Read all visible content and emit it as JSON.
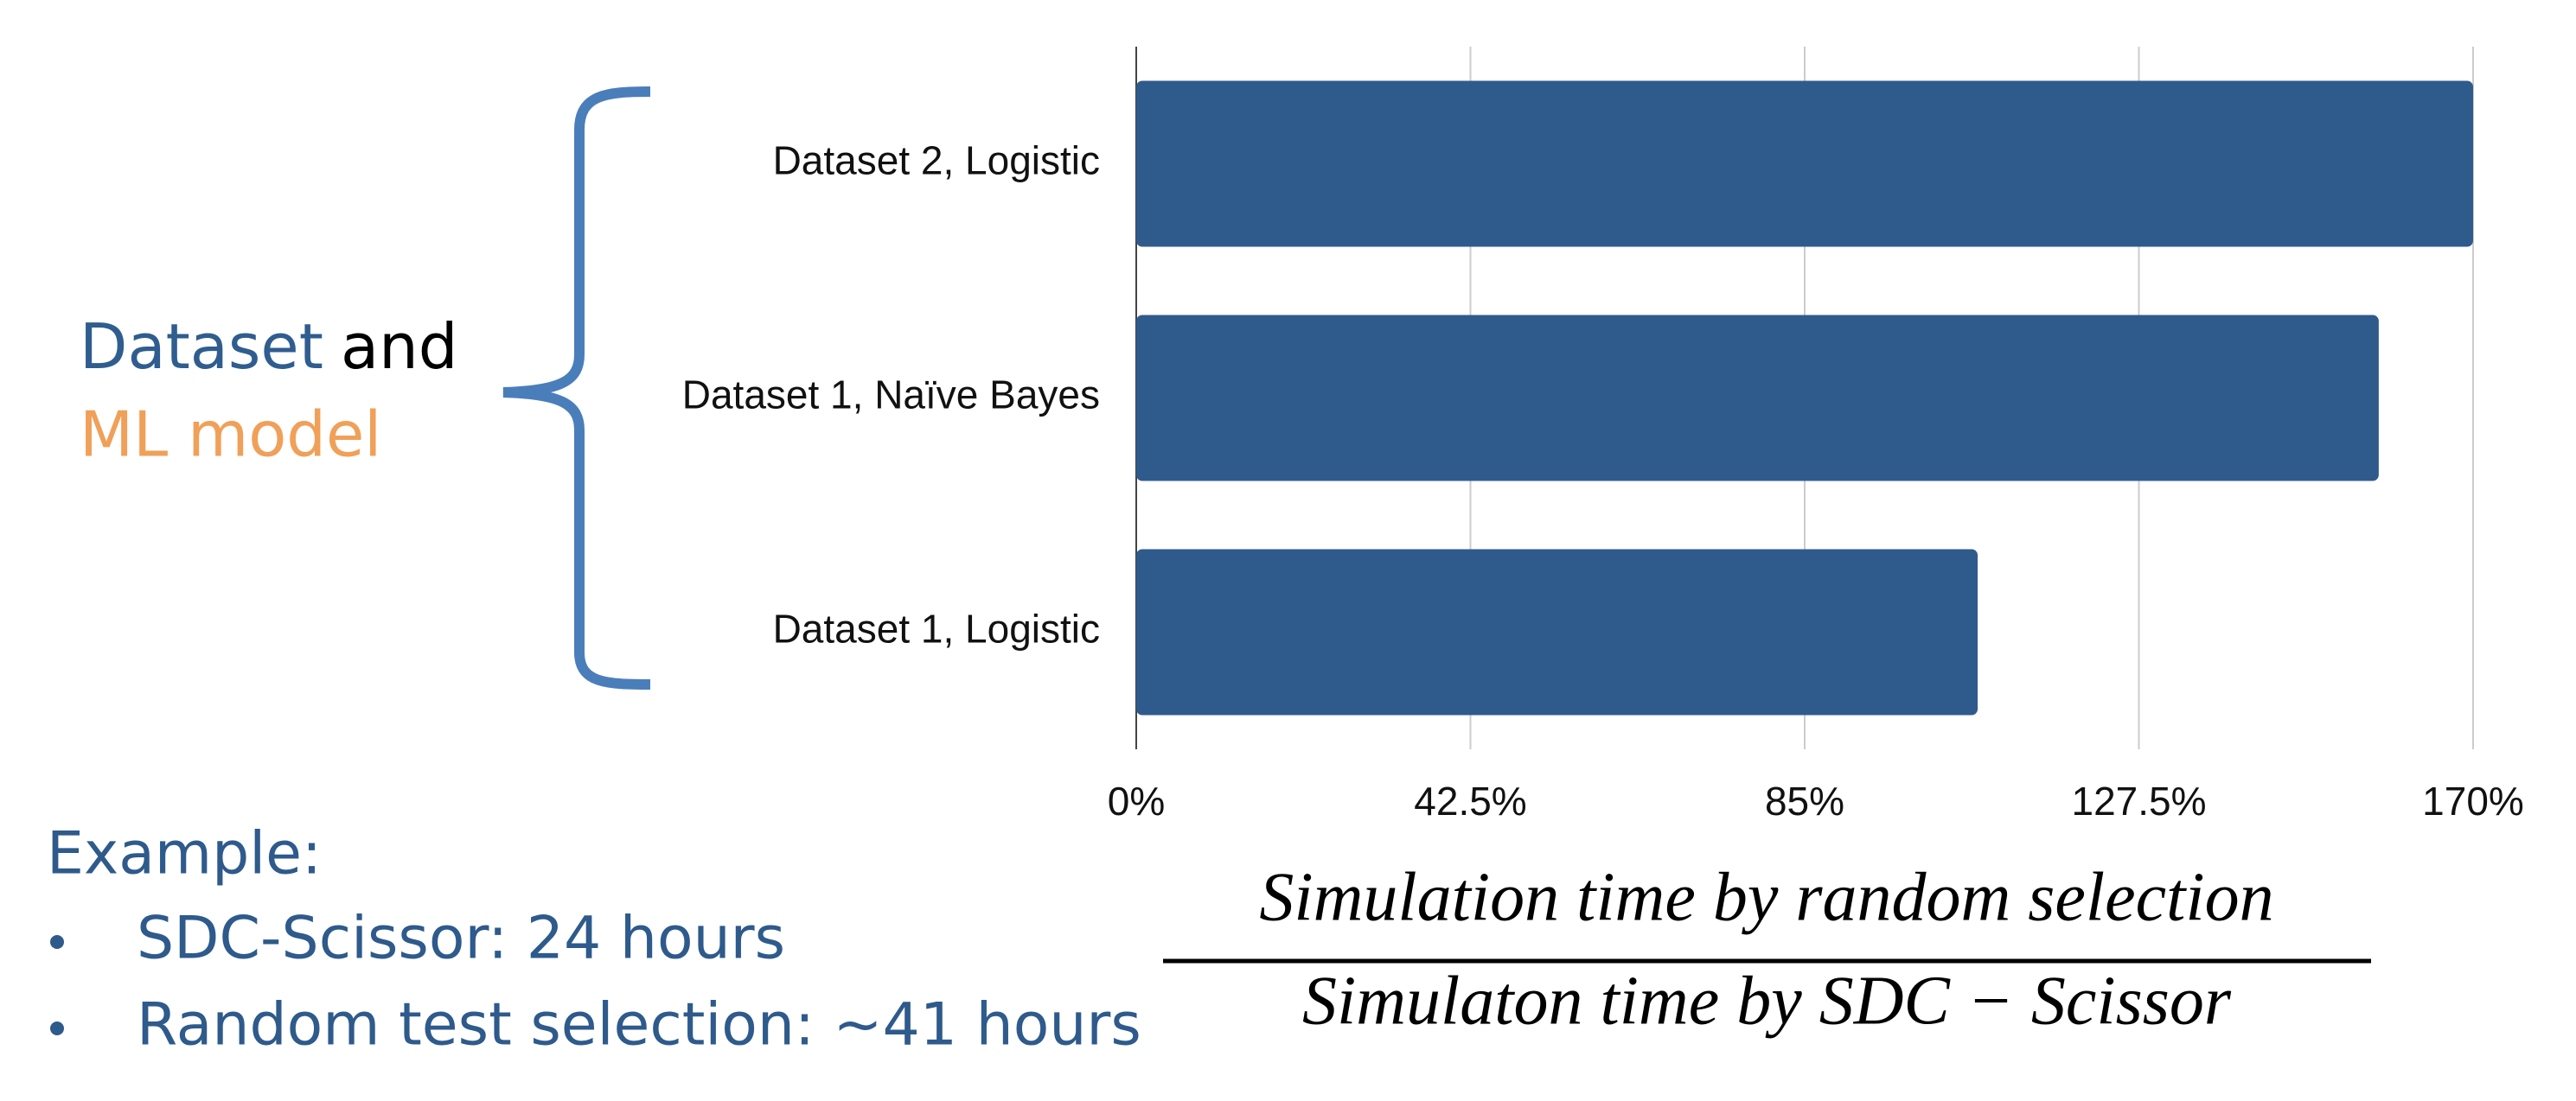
{
  "chart_data": {
    "type": "bar",
    "orientation": "horizontal",
    "categories": [
      "Dataset 2, Logistic",
      "Dataset 1, Naïve Bayes",
      "Dataset 1, Logistic"
    ],
    "values": [
      170,
      158,
      107
    ],
    "color": "#2f5a8c",
    "xlim": [
      0,
      170
    ],
    "xticks": [
      {
        "value": 0,
        "label": "0%"
      },
      {
        "value": 42.5,
        "label": "42.5%"
      },
      {
        "value": 85,
        "label": "85%"
      },
      {
        "value": 127.5,
        "label": "127.5%"
      },
      {
        "value": 170,
        "label": "170%"
      }
    ],
    "grid": true,
    "xlabel": {
      "numerator": "Simulation time by random selection",
      "denominator": "Simulaton time by SDC − Scissor"
    },
    "group_label": {
      "part1": "Dataset",
      "part2": "and",
      "part3": "ML model"
    },
    "example": {
      "title": "Example:",
      "items": [
        "SDC-Scissor: 24 hours",
        "Random test selection: ~41 hours"
      ]
    }
  }
}
